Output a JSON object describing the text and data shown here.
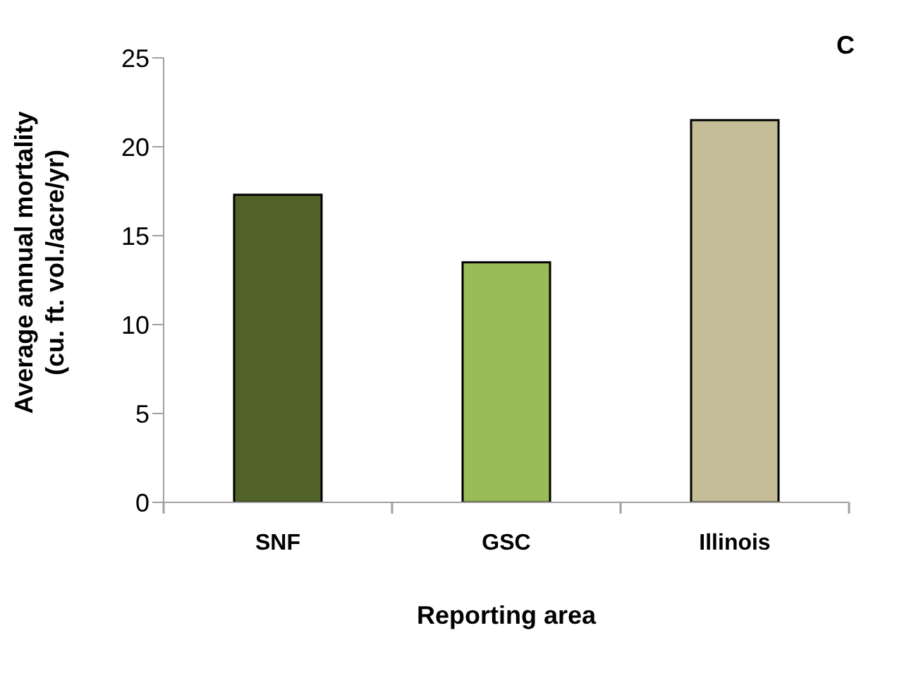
{
  "chart_data": {
    "type": "bar",
    "xlabel": "Reporting area",
    "ylabel": "Average annual mortality\n(cu. ft. vol./acre/yr)",
    "annotations": [
      "C"
    ],
    "categories": [
      "SNF",
      "GSC",
      "Illinois"
    ],
    "values": [
      17.3,
      13.5,
      21.5
    ],
    "colors": [
      "#52632a",
      "#9bbb59",
      "#c4bd97"
    ],
    "ylim": [
      0,
      25
    ],
    "yticks": [
      0,
      5,
      10,
      15,
      20,
      25
    ],
    "grid": false
  }
}
